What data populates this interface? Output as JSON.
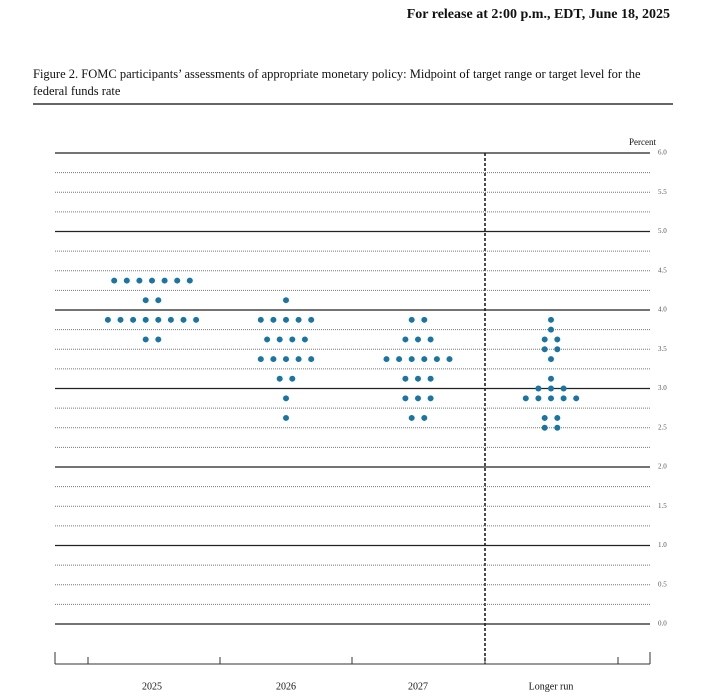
{
  "header": "For release at 2:00 p.m., EDT, June 18, 2025",
  "chart_data": {
    "type": "dot",
    "title": "Figure 2.  FOMC participants’ assessments of appropriate monetary policy:  Midpoint of target range or target level for the federal funds rate",
    "y_label": "Percent",
    "categories": [
      "2025",
      "2026",
      "2027",
      "Longer run"
    ],
    "values": [
      [
        4.375,
        4.375,
        4.375,
        4.375,
        4.375,
        4.375,
        4.375,
        4.125,
        4.125,
        3.875,
        3.875,
        3.875,
        3.875,
        3.875,
        3.875,
        3.875,
        3.875,
        3.625,
        3.625
      ],
      [
        4.125,
        3.875,
        3.875,
        3.875,
        3.875,
        3.875,
        3.625,
        3.625,
        3.625,
        3.625,
        3.375,
        3.375,
        3.375,
        3.375,
        3.375,
        3.125,
        3.125,
        2.875,
        2.625
      ],
      [
        3.875,
        3.875,
        3.625,
        3.625,
        3.625,
        3.375,
        3.375,
        3.375,
        3.375,
        3.375,
        3.375,
        3.125,
        3.125,
        3.125,
        2.875,
        2.875,
        2.875,
        2.625,
        2.625
      ],
      [
        3.875,
        3.75,
        3.625,
        3.625,
        3.5,
        3.5,
        3.375,
        3.125,
        3.0,
        3.0,
        3.0,
        2.875,
        2.875,
        2.875,
        2.875,
        2.875,
        2.625,
        2.625,
        2.5,
        2.5
      ]
    ],
    "color": "#1a75a3",
    "ylim": [
      0,
      6
    ],
    "yticks": [
      {
        "value": 0,
        "label": "0.0"
      },
      {
        "value": 0.5,
        "label": "0.5"
      },
      {
        "value": 1,
        "label": "1.0"
      },
      {
        "value": 1.5,
        "label": "1.5"
      },
      {
        "value": 2,
        "label": "2.0"
      },
      {
        "value": 2.5,
        "label": "2.5"
      },
      {
        "value": 3,
        "label": "3.0"
      },
      {
        "value": 3.5,
        "label": "3.5"
      },
      {
        "value": 4,
        "label": "4.0"
      },
      {
        "value": 4.5,
        "label": "4.5"
      },
      {
        "value": 5,
        "label": "5.0"
      },
      {
        "value": 5.5,
        "label": "5.5"
      },
      {
        "value": 6,
        "label": "6.0"
      }
    ],
    "grid": true
  }
}
